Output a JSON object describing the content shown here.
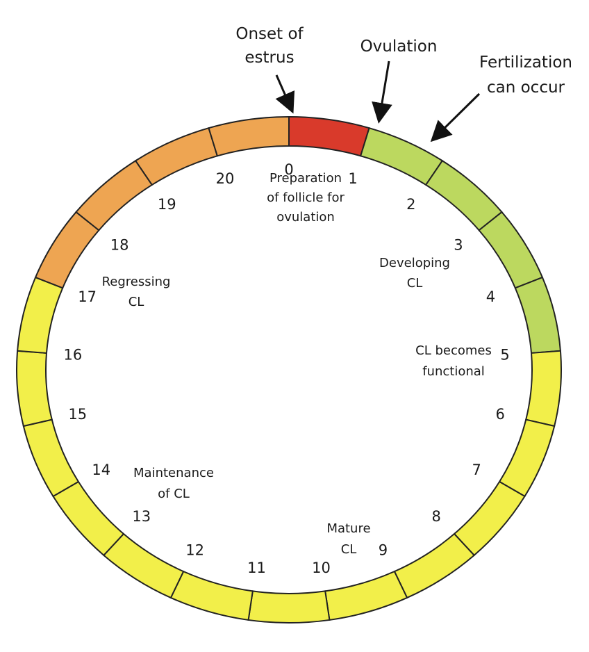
{
  "ring": {
    "day_labels": [
      "0",
      "1",
      "2",
      "3",
      "4",
      "5",
      "6",
      "7",
      "8",
      "9",
      "10",
      "11",
      "12",
      "13",
      "14",
      "15",
      "16",
      "17",
      "18",
      "19",
      "20"
    ],
    "segments": [
      {
        "day": 0,
        "color": "#d93a2b"
      },
      {
        "day": 1,
        "color": "#bcd85f"
      },
      {
        "day": 2,
        "color": "#bcd85f"
      },
      {
        "day": 3,
        "color": "#bcd85f"
      },
      {
        "day": 4,
        "color": "#bcd85f"
      },
      {
        "day": 5,
        "color": "#f2ef4a"
      },
      {
        "day": 6,
        "color": "#f2ef4a"
      },
      {
        "day": 7,
        "color": "#f2ef4a"
      },
      {
        "day": 8,
        "color": "#f2ef4a"
      },
      {
        "day": 9,
        "color": "#f2ef4a"
      },
      {
        "day": 10,
        "color": "#f2ef4a"
      },
      {
        "day": 11,
        "color": "#f2ef4a"
      },
      {
        "day": 12,
        "color": "#f2ef4a"
      },
      {
        "day": 13,
        "color": "#f2ef4a"
      },
      {
        "day": 14,
        "color": "#f2ef4a"
      },
      {
        "day": 15,
        "color": "#f2ef4a"
      },
      {
        "day": 16,
        "color": "#f2ef4a"
      },
      {
        "day": 17,
        "color": "#eea552"
      },
      {
        "day": 18,
        "color": "#eea552"
      },
      {
        "day": 19,
        "color": "#eea552"
      },
      {
        "day": 20,
        "color": "#eea552"
      }
    ]
  },
  "callouts": {
    "onset_line1": "Onset of",
    "onset_line2": "estrus",
    "ovulation": "Ovulation",
    "fert_line1": "Fertilization",
    "fert_line2": "can occur"
  },
  "phases": {
    "prep_line1": "Preparation",
    "prep_line2": "of follicle for",
    "prep_line3": "ovulation",
    "developing_line1": "Developing",
    "developing_line2": "CL",
    "functional_line1": "CL becomes",
    "functional_line2": "functional",
    "mature_line1": "Mature",
    "mature_line2": "CL",
    "maintenance_line1": "Maintenance",
    "maintenance_line2": "of CL",
    "regressing_line1": "Regressing",
    "regressing_line2": "CL"
  }
}
